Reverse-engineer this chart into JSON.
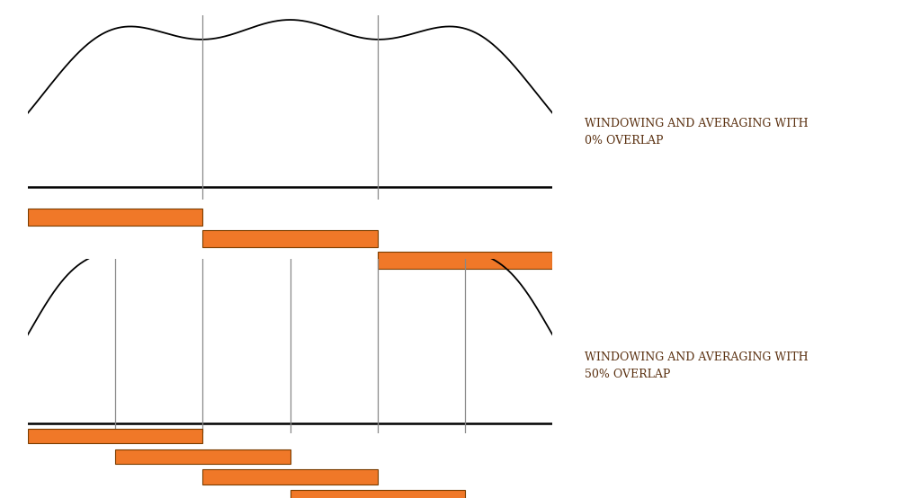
{
  "fig_width": 10.24,
  "fig_height": 5.54,
  "bg_color": "#ffffff",
  "orange_color": "#f07828",
  "orange_edge_color": "#7a3d00",
  "line_color": "#000000",
  "vline_color": "#888888",
  "text_color": "#5a3010",
  "label1": "WINDOWING AND AVERAGING WITH\n0% OVERLAP",
  "label2": "WINDOWING AND AVERAGING WITH\n50% OVERLAP",
  "label_fontsize": 9.0,
  "sigma_0": 0.42,
  "sigma_50": 0.28
}
